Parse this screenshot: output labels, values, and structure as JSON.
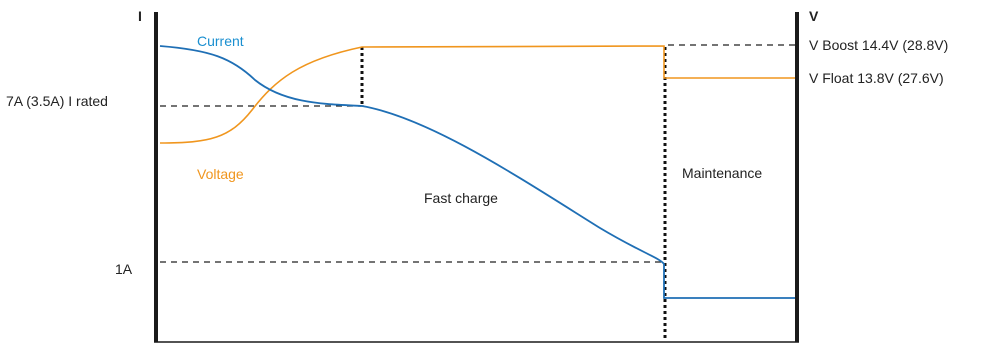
{
  "chart_data": {
    "type": "line",
    "title": "",
    "left_axis_label": "I",
    "right_axis_label": "V",
    "left_ticks": [
      {
        "label": "7A (3.5A) I rated",
        "value": "I_rated"
      },
      {
        "label": "1A",
        "value": "1A"
      }
    ],
    "right_ticks": [
      {
        "label": "V Boost 14.4V (28.8V)",
        "value": "V_boost"
      },
      {
        "label": "V Float 13.8V (27.6V)",
        "value": "V_float"
      }
    ],
    "series": [
      {
        "name": "Current",
        "color": "#1a8fd0"
      },
      {
        "name": "Voltage",
        "color": "#f0961e"
      }
    ],
    "phases": [
      {
        "label": "Fast charge"
      },
      {
        "label": "Maintenance"
      }
    ],
    "curve_colors": {
      "current": "#1f6fb5",
      "voltage": "#f0961e",
      "axis": "#1a1a1a",
      "guide": "#222222"
    }
  }
}
